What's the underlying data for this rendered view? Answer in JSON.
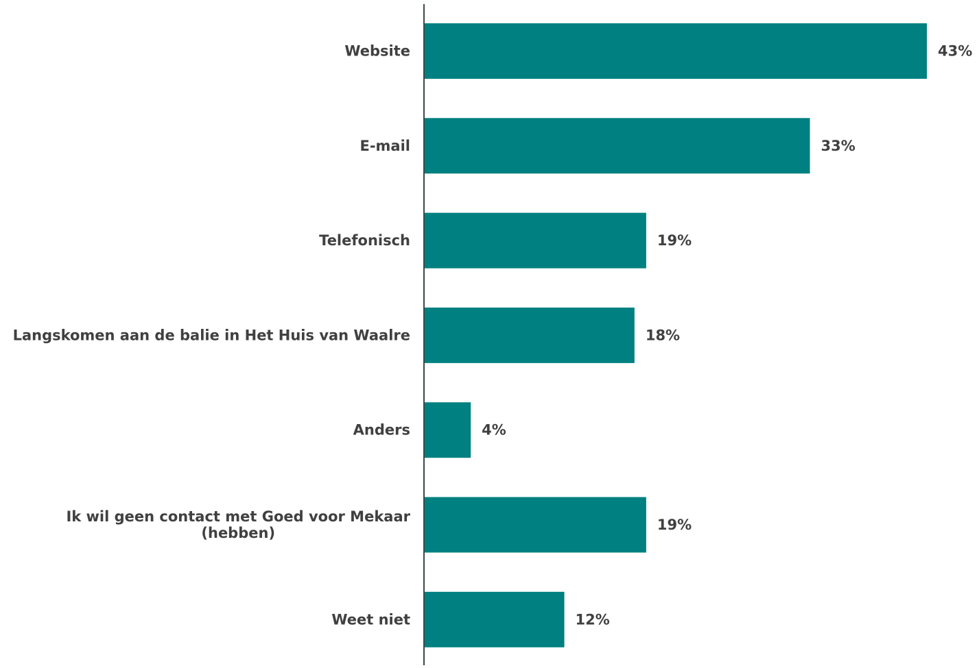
{
  "chart_data": {
    "type": "bar",
    "orientation": "horizontal",
    "categories": [
      "Website",
      "E-mail",
      "Telefonisch",
      "Langskomen aan de balie in Het Huis van Waalre",
      "Anders",
      "Ik wil geen contact met Goed voor Mekaar (hebben)",
      "Weet niet"
    ],
    "values": [
      43,
      33,
      19,
      18,
      4,
      19,
      12
    ],
    "value_labels": [
      "43%",
      "33%",
      "19%",
      "18%",
      "4%",
      "19%",
      "12%"
    ],
    "unit": "%",
    "xlim": [
      0,
      43
    ],
    "grid": false,
    "legend": "none",
    "colors": {
      "bar": "#008080",
      "text": "#404040",
      "axis": "#3a4a48"
    }
  }
}
